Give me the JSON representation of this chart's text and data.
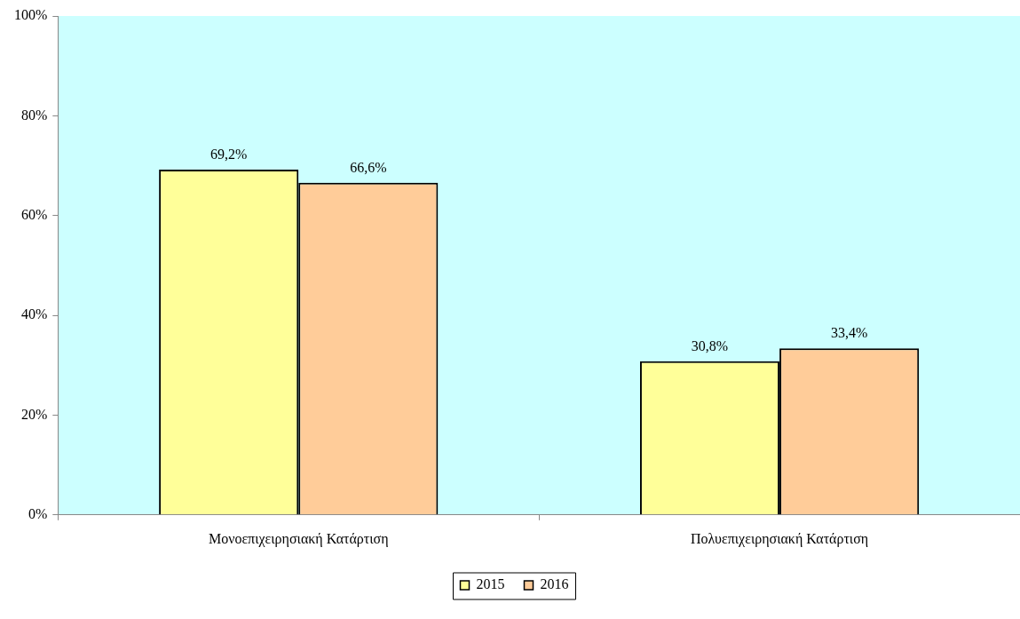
{
  "chart_data": {
    "type": "bar",
    "categories": [
      "Μονοεπιχειρησιακή Κατάρτιση",
      "Πολυεπιχειρησιακή Κατάρτιση"
    ],
    "series": [
      {
        "name": "2015",
        "color": "#ffff99",
        "values": [
          69.2,
          30.8
        ],
        "value_labels": [
          "69,2%",
          "30,8%"
        ]
      },
      {
        "name": "2016",
        "color": "#ffcc99",
        "values": [
          66.6,
          33.4
        ],
        "value_labels": [
          "66,6%",
          "33,4%"
        ]
      }
    ],
    "ylim": [
      0,
      100
    ],
    "yticks": [
      {
        "value": 0,
        "label": "0%"
      },
      {
        "value": 20,
        "label": "20%"
      },
      {
        "value": 40,
        "label": "40%"
      },
      {
        "value": 60,
        "label": "60%"
      },
      {
        "value": 80,
        "label": "80%"
      },
      {
        "value": 100,
        "label": "100%"
      }
    ],
    "grid": false,
    "legend": "bottom"
  }
}
